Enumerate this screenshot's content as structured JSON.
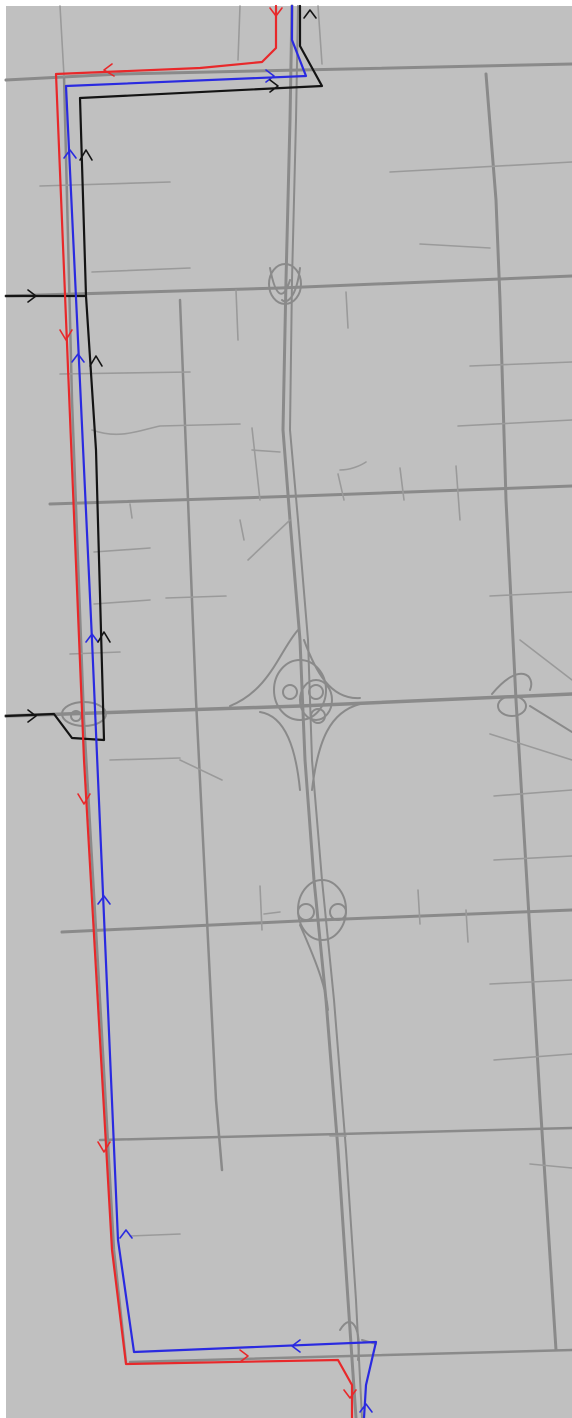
{
  "map": {
    "colors": {
      "background": "#c0c0c0",
      "page": "#ffffff",
      "road": "#8a8a8a",
      "road_minor": "#9a9a9a",
      "route_red": "#e8282a",
      "route_blue": "#2a2ae0",
      "route_black": "#141414"
    },
    "routes": [
      {
        "id": "red-route",
        "color": "#e8282a"
      },
      {
        "id": "blue-route",
        "color": "#2a2ae0"
      },
      {
        "id": "black-route",
        "color": "#141414"
      }
    ],
    "icons": [
      "direction-arrow-icon"
    ]
  }
}
